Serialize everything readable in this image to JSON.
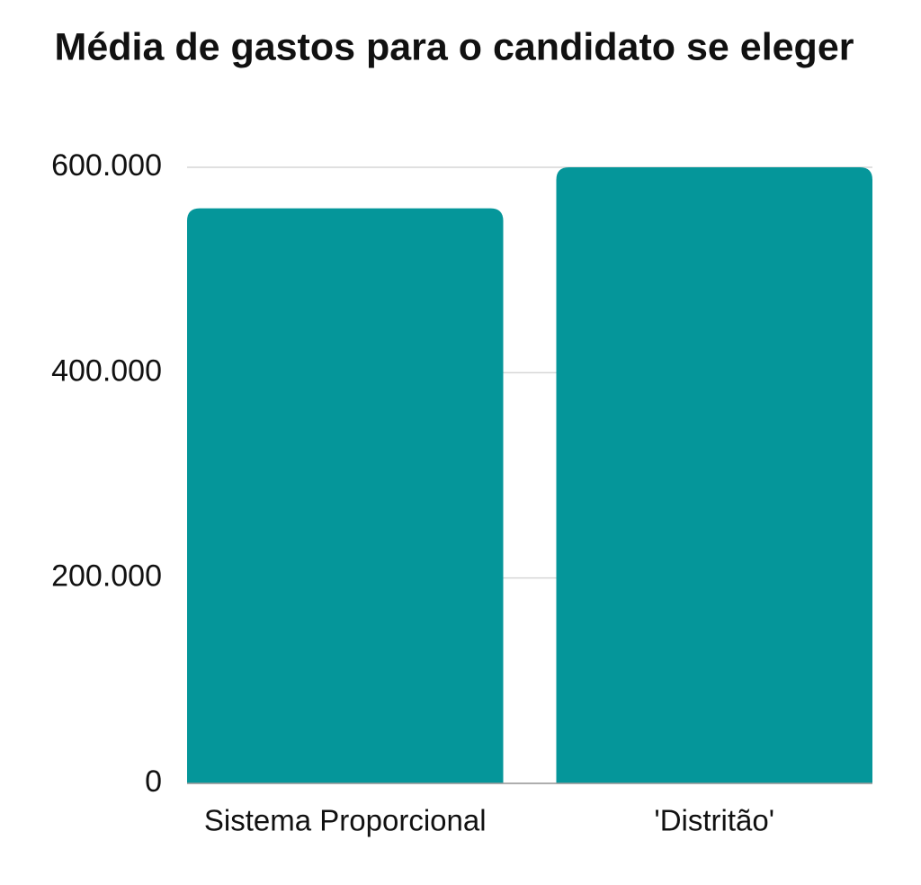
{
  "chart_data": {
    "type": "bar",
    "title": "Média de gastos para o candidato se eleger",
    "categories": [
      "Sistema Proporcional",
      "'Distritão'"
    ],
    "values": [
      560000,
      600000
    ],
    "color": "#05969a",
    "ylim": [
      0,
      600000
    ],
    "yticks": [
      0,
      {
        "value": 200000,
        "label": "200.000"
      },
      {
        "value": 400000,
        "label": "400.000"
      },
      {
        "value": 600000,
        "label": "600.000"
      }
    ],
    "grid": true
  }
}
